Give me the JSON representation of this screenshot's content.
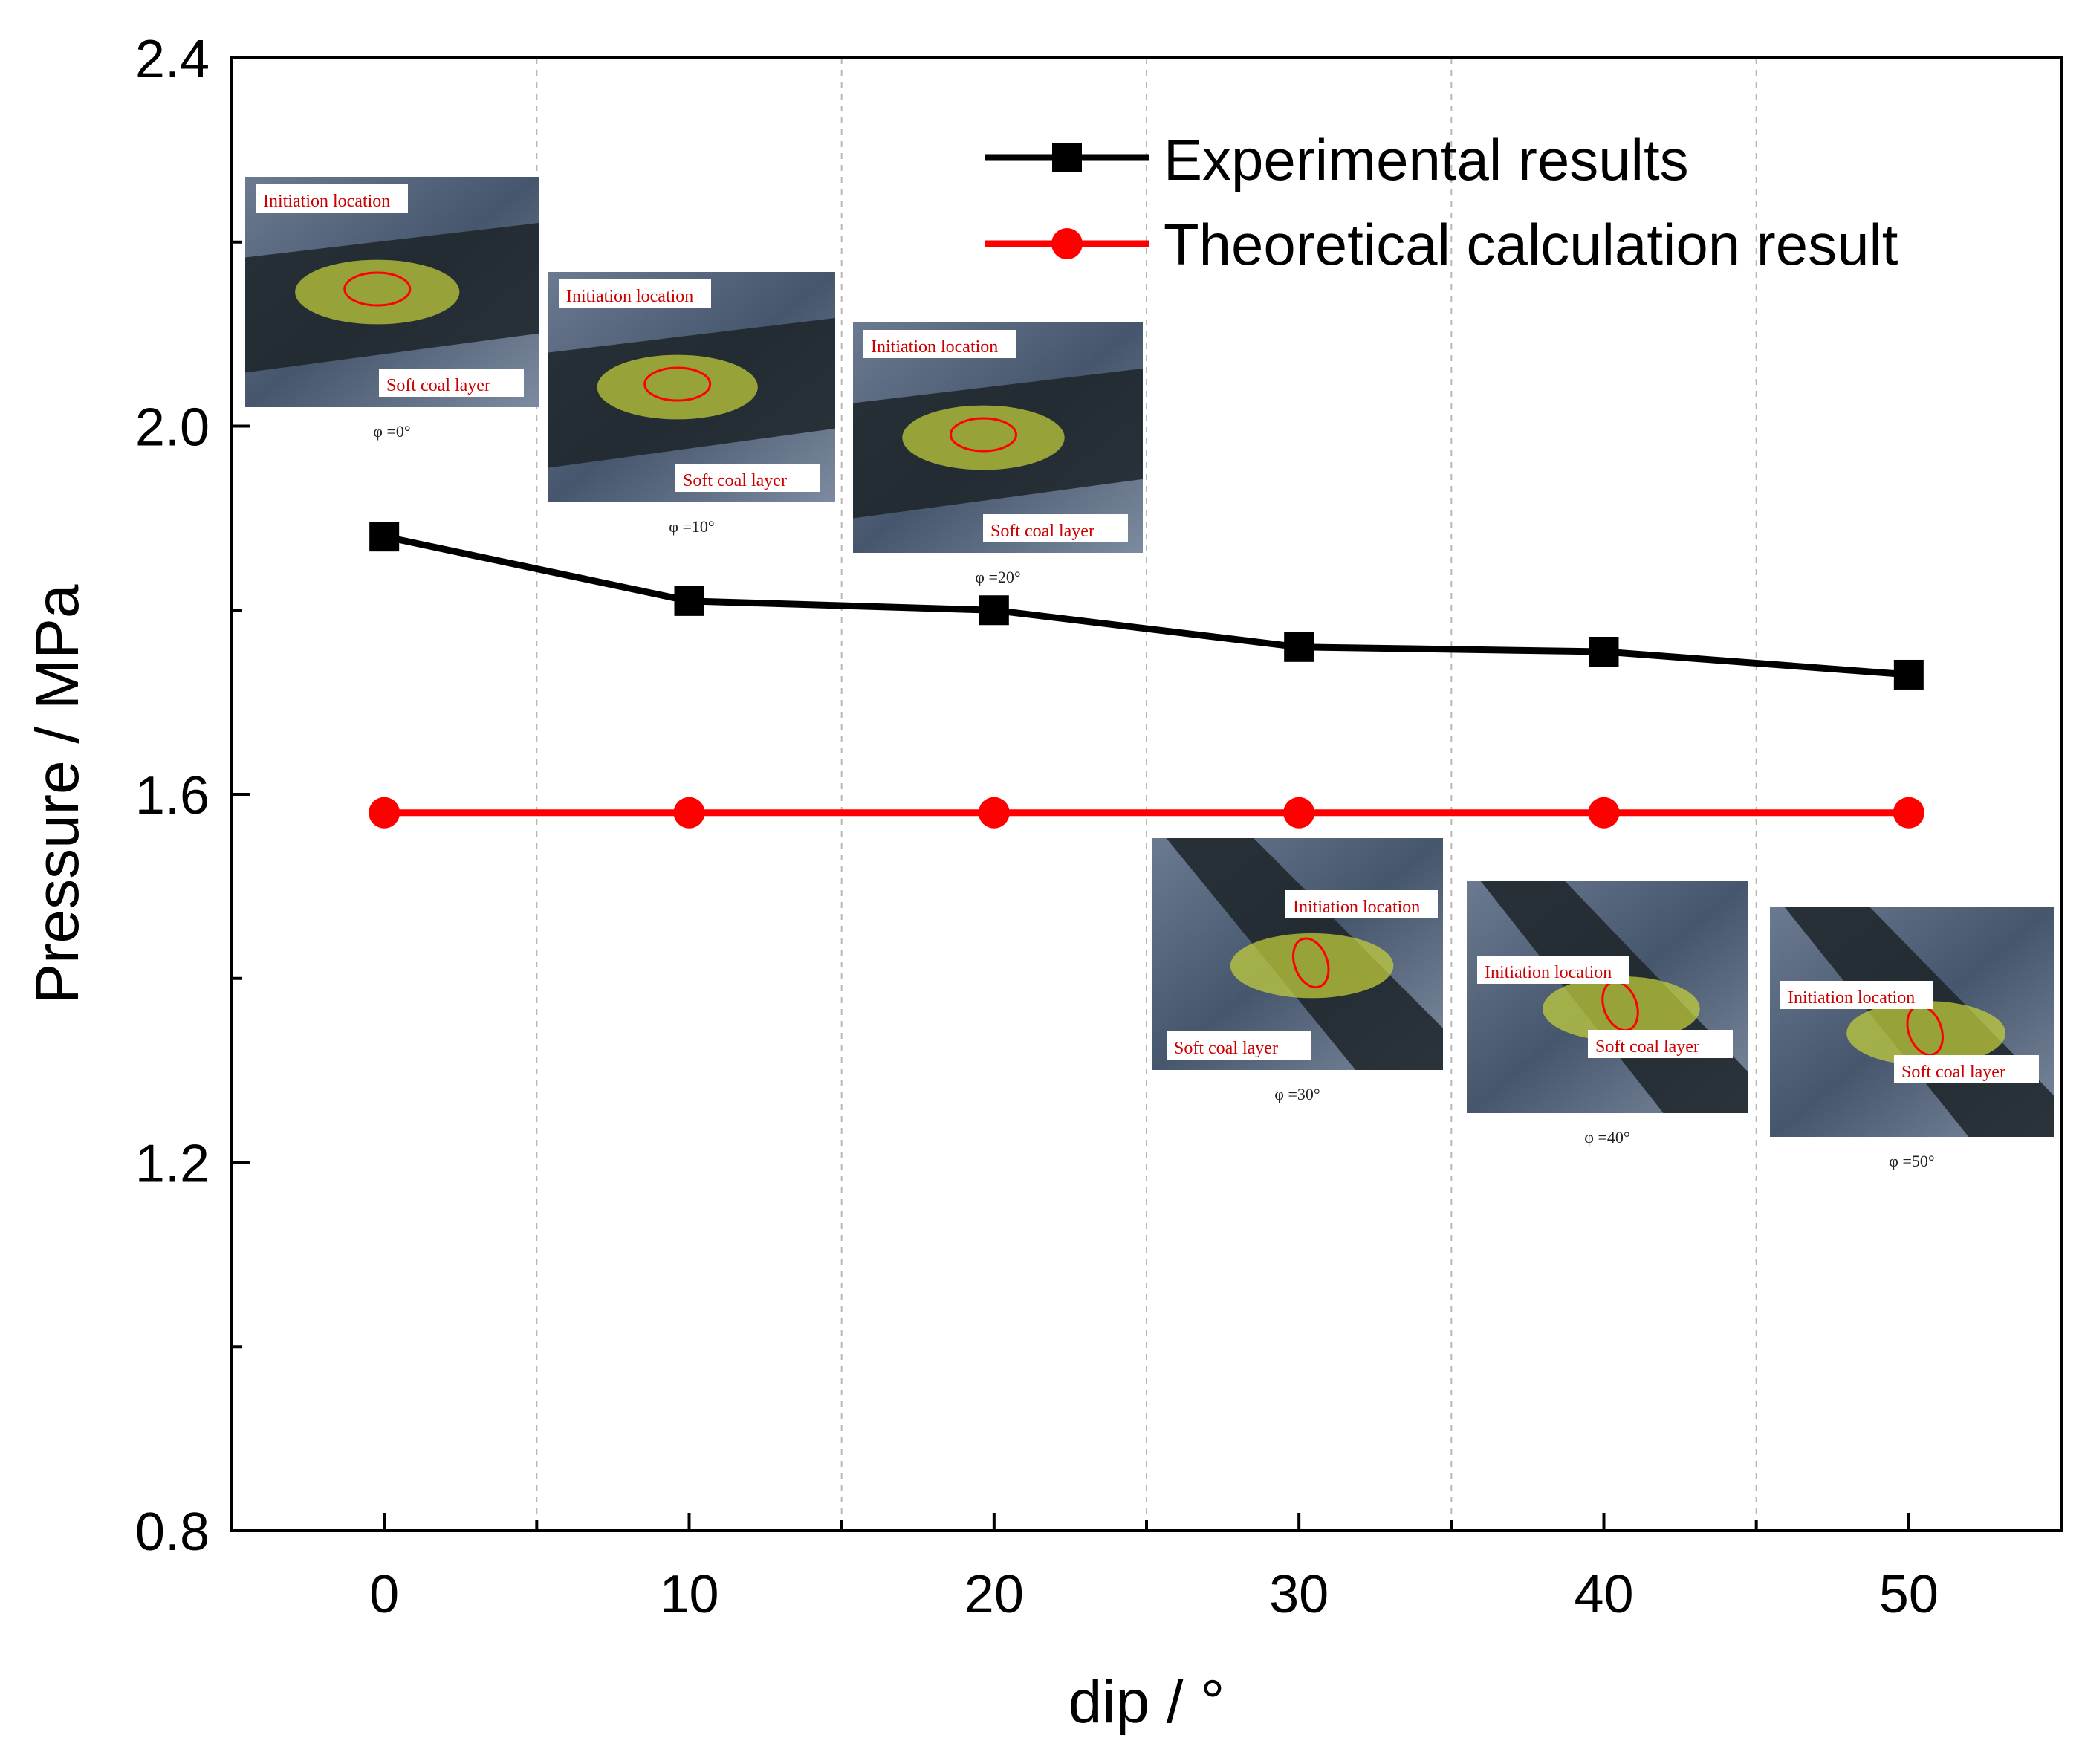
{
  "chart_data": {
    "type": "line",
    "xlabel": "dip / °",
    "ylabel": "Pressure / MPa",
    "xlim": [
      -5,
      55
    ],
    "ylim": [
      0.8,
      2.4
    ],
    "x": [
      0,
      10,
      20,
      30,
      40,
      50
    ],
    "x_tick_labels": [
      "0",
      "10",
      "20",
      "30",
      "40",
      "50"
    ],
    "y_ticks": [
      0.8,
      1.2,
      1.6,
      2.0,
      2.4
    ],
    "y_tick_labels": [
      "0.8",
      "1.2",
      "1.6",
      "2.0",
      "2.4"
    ],
    "grid": "vertical dashed",
    "legend_position": "top-right",
    "series": [
      {
        "name": "Experimental results",
        "marker": "square",
        "color": "#000000",
        "values": [
          1.88,
          1.81,
          1.8,
          1.76,
          1.755,
          1.73
        ]
      },
      {
        "name": "Theoretical calculation result",
        "marker": "circle",
        "color": "#ff0000",
        "values": [
          1.58,
          1.58,
          1.58,
          1.58,
          1.58,
          1.58
        ]
      }
    ]
  },
  "insets": [
    {
      "caption": "φ =0°",
      "initiation_label": "Initiation location",
      "soft_label": "Soft coal layer"
    },
    {
      "caption": "φ =10°",
      "initiation_label": "Initiation location",
      "soft_label": "Soft coal layer"
    },
    {
      "caption": "φ =20°",
      "initiation_label": "Initiation location",
      "soft_label": "Soft coal layer"
    },
    {
      "caption": "φ =30°",
      "initiation_label": "Initiation location",
      "soft_label": "Soft coal layer"
    },
    {
      "caption": "φ =40°",
      "initiation_label": "Initiation location",
      "soft_label": "Soft coal layer"
    },
    {
      "caption": "φ =50°",
      "initiation_label": "Initiation location",
      "soft_label": "Soft coal layer"
    }
  ]
}
